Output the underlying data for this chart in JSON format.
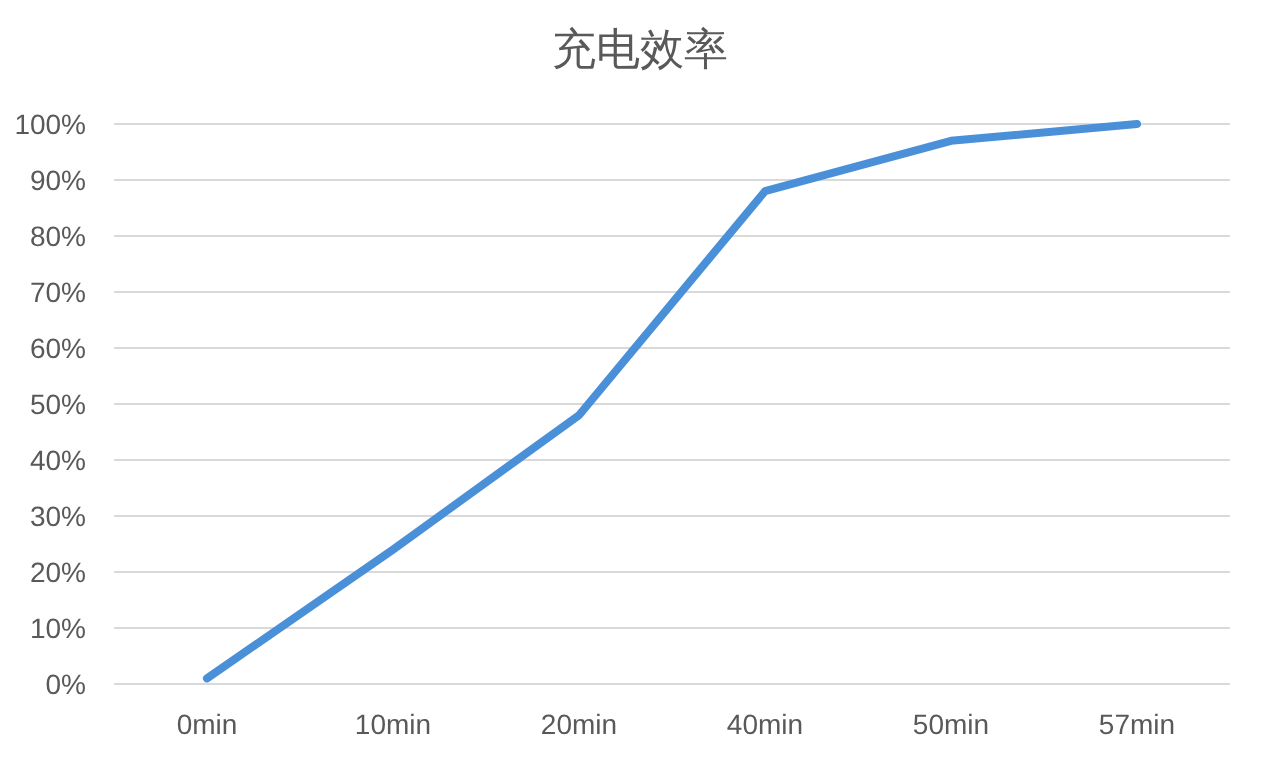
{
  "chart_data": {
    "type": "line",
    "title": "充电效率",
    "categories": [
      "0min",
      "10min",
      "20min",
      "40min",
      "50min",
      "57min"
    ],
    "series": [
      {
        "color": "#4a90d9",
        "values": [
          1,
          24,
          48,
          88,
          97,
          100
        ]
      }
    ],
    "ylim": [
      0,
      100
    ],
    "yticks": [
      {
        "value": 0,
        "label": "0%"
      },
      {
        "value": 10,
        "label": "10%"
      },
      {
        "value": 20,
        "label": "20%"
      },
      {
        "value": 30,
        "label": "30%"
      },
      {
        "value": 40,
        "label": "40%"
      },
      {
        "value": 50,
        "label": "50%"
      },
      {
        "value": 60,
        "label": "60%"
      },
      {
        "value": 70,
        "label": "70%"
      },
      {
        "value": 80,
        "label": "80%"
      },
      {
        "value": 90,
        "label": "90%"
      },
      {
        "value": 100,
        "label": "100%"
      }
    ],
    "grid": "y",
    "marker": "none",
    "line_style": "solid"
  }
}
